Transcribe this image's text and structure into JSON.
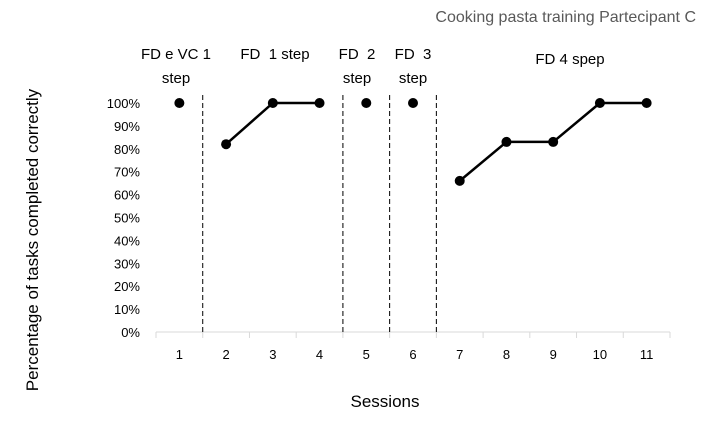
{
  "chart_data": {
    "type": "line",
    "title": "Cooking pasta training Partecipant C",
    "xlabel": "Sessions",
    "ylabel": "Percentage of tasks completed correctly",
    "x": [
      1,
      2,
      3,
      4,
      5,
      6,
      7,
      8,
      9,
      10,
      11
    ],
    "x_tick_labels": [
      "1",
      "2",
      "3",
      "4",
      "5",
      "6",
      "7",
      "8",
      "9",
      "10",
      "11"
    ],
    "y_tick_labels": [
      "0%",
      "10%",
      "20%",
      "30%",
      "40%",
      "50%",
      "60%",
      "70%",
      "80%",
      "90%",
      "100%"
    ],
    "ylim": [
      0,
      100
    ],
    "grid": false,
    "legend": "none",
    "line_color": "#000000",
    "phase_changes": [
      1.5,
      4.5,
      5.5,
      6.5
    ],
    "phases": [
      {
        "lines": [
          "FD e VC 1",
          "step"
        ],
        "sessions": [
          1
        ],
        "values": [
          100
        ]
      },
      {
        "lines": [
          "FD  1 step"
        ],
        "sessions": [
          2,
          3,
          4
        ],
        "values": [
          82,
          100,
          100
        ]
      },
      {
        "lines": [
          "FD  2",
          "step"
        ],
        "sessions": [
          5
        ],
        "values": [
          100
        ]
      },
      {
        "lines": [
          "FD  3",
          "step"
        ],
        "sessions": [
          6
        ],
        "values": [
          100
        ]
      },
      {
        "lines": [
          "FD 4 spep"
        ],
        "sessions": [
          7,
          8,
          9,
          10,
          11
        ],
        "values": [
          66,
          83,
          83,
          100,
          100
        ]
      }
    ]
  }
}
